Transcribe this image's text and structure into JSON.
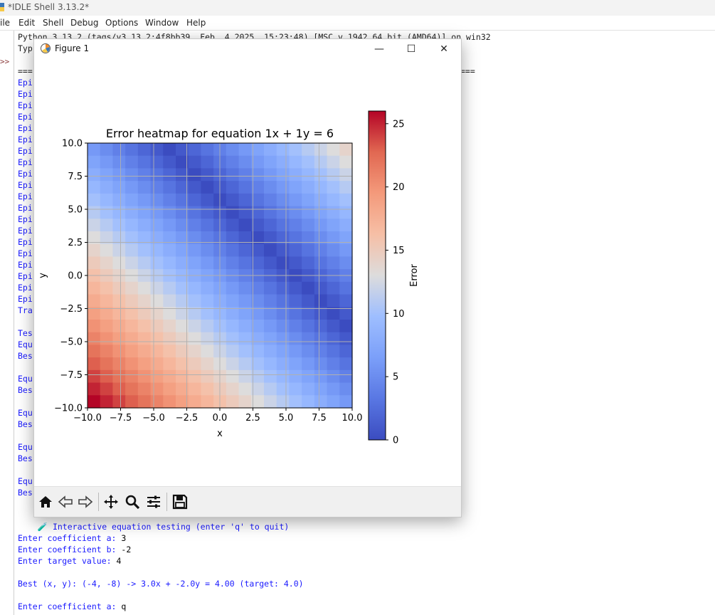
{
  "idle": {
    "title": "*IDLE Shell 3.13.2*",
    "menu": [
      "ile",
      "Edit",
      "Shell",
      "Debug",
      "Options",
      "Window",
      "Help"
    ],
    "gutter_prompt": ">>",
    "header_line_1": "Python 3.13.2 (tags/v3.13.2:4f8bb39, Feb  4 2025, 15:23:48) [MSC v.1942 64 bit (AMD64)] on win32",
    "header_line_2_left": "Typ",
    "separator_left": "===",
    "separator_right": "===",
    "epoch_prefix": "Epi",
    "train_prefix": "Tra",
    "test_prefix": "Tes",
    "equ_prefix": "Equ",
    "best_prefix": "Bes",
    "interactive_line": "Interactive equation testing (enter 'q' to quit)",
    "prompt_a": "Enter coefficient a:",
    "value_a": "3",
    "prompt_b": "Enter coefficient b:",
    "value_b": "-2",
    "prompt_target": "Enter target value:",
    "value_target": "4",
    "best_result": "Best (x, y): (-4, -8) -> 3.0x + -2.0y = 4.00 (target: 4.0)",
    "prompt_a2": "Enter coefficient a:",
    "value_a2": "q"
  },
  "figure": {
    "window_title": "Figure 1",
    "minimize": "—",
    "maximize": "☐",
    "close": "✕",
    "toolbar": [
      "home-icon",
      "back-icon",
      "forward-icon",
      "pan-icon",
      "zoom-icon",
      "configure-icon",
      "save-icon"
    ]
  },
  "chart_data": {
    "type": "heatmap",
    "title": "Error heatmap for equation 1x + 1y = 6",
    "xlabel": "x",
    "ylabel": "y",
    "xlim": [
      -10,
      10
    ],
    "ylim": [
      -10,
      10
    ],
    "x_ticks": [
      "−10.0",
      "−7.5",
      "−5.0",
      "−2.5",
      "0.0",
      "2.5",
      "5.0",
      "7.5",
      "10.0"
    ],
    "y_ticks": [
      "10.0",
      "7.5",
      "5.0",
      "2.5",
      "0.0",
      "−2.5",
      "−5.0",
      "−7.5",
      "−10.0"
    ],
    "x_values": [
      -10,
      -9,
      -8,
      -7,
      -6,
      -5,
      -4,
      -3,
      -2,
      -1,
      0,
      1,
      2,
      3,
      4,
      5,
      6,
      7,
      8,
      9,
      10
    ],
    "y_values": [
      10,
      9,
      8,
      7,
      6,
      5,
      4,
      3,
      2,
      1,
      0,
      -1,
      -2,
      -3,
      -4,
      -5,
      -6,
      -7,
      -8,
      -9,
      -10
    ],
    "error_formula": "|x + y - 6|",
    "colormap": "coolwarm",
    "colorbar_label": "Error",
    "colorbar_ticks": [
      "0",
      "5",
      "10",
      "15",
      "20",
      "25"
    ],
    "color_range": [
      0,
      26
    ],
    "grid": true
  }
}
